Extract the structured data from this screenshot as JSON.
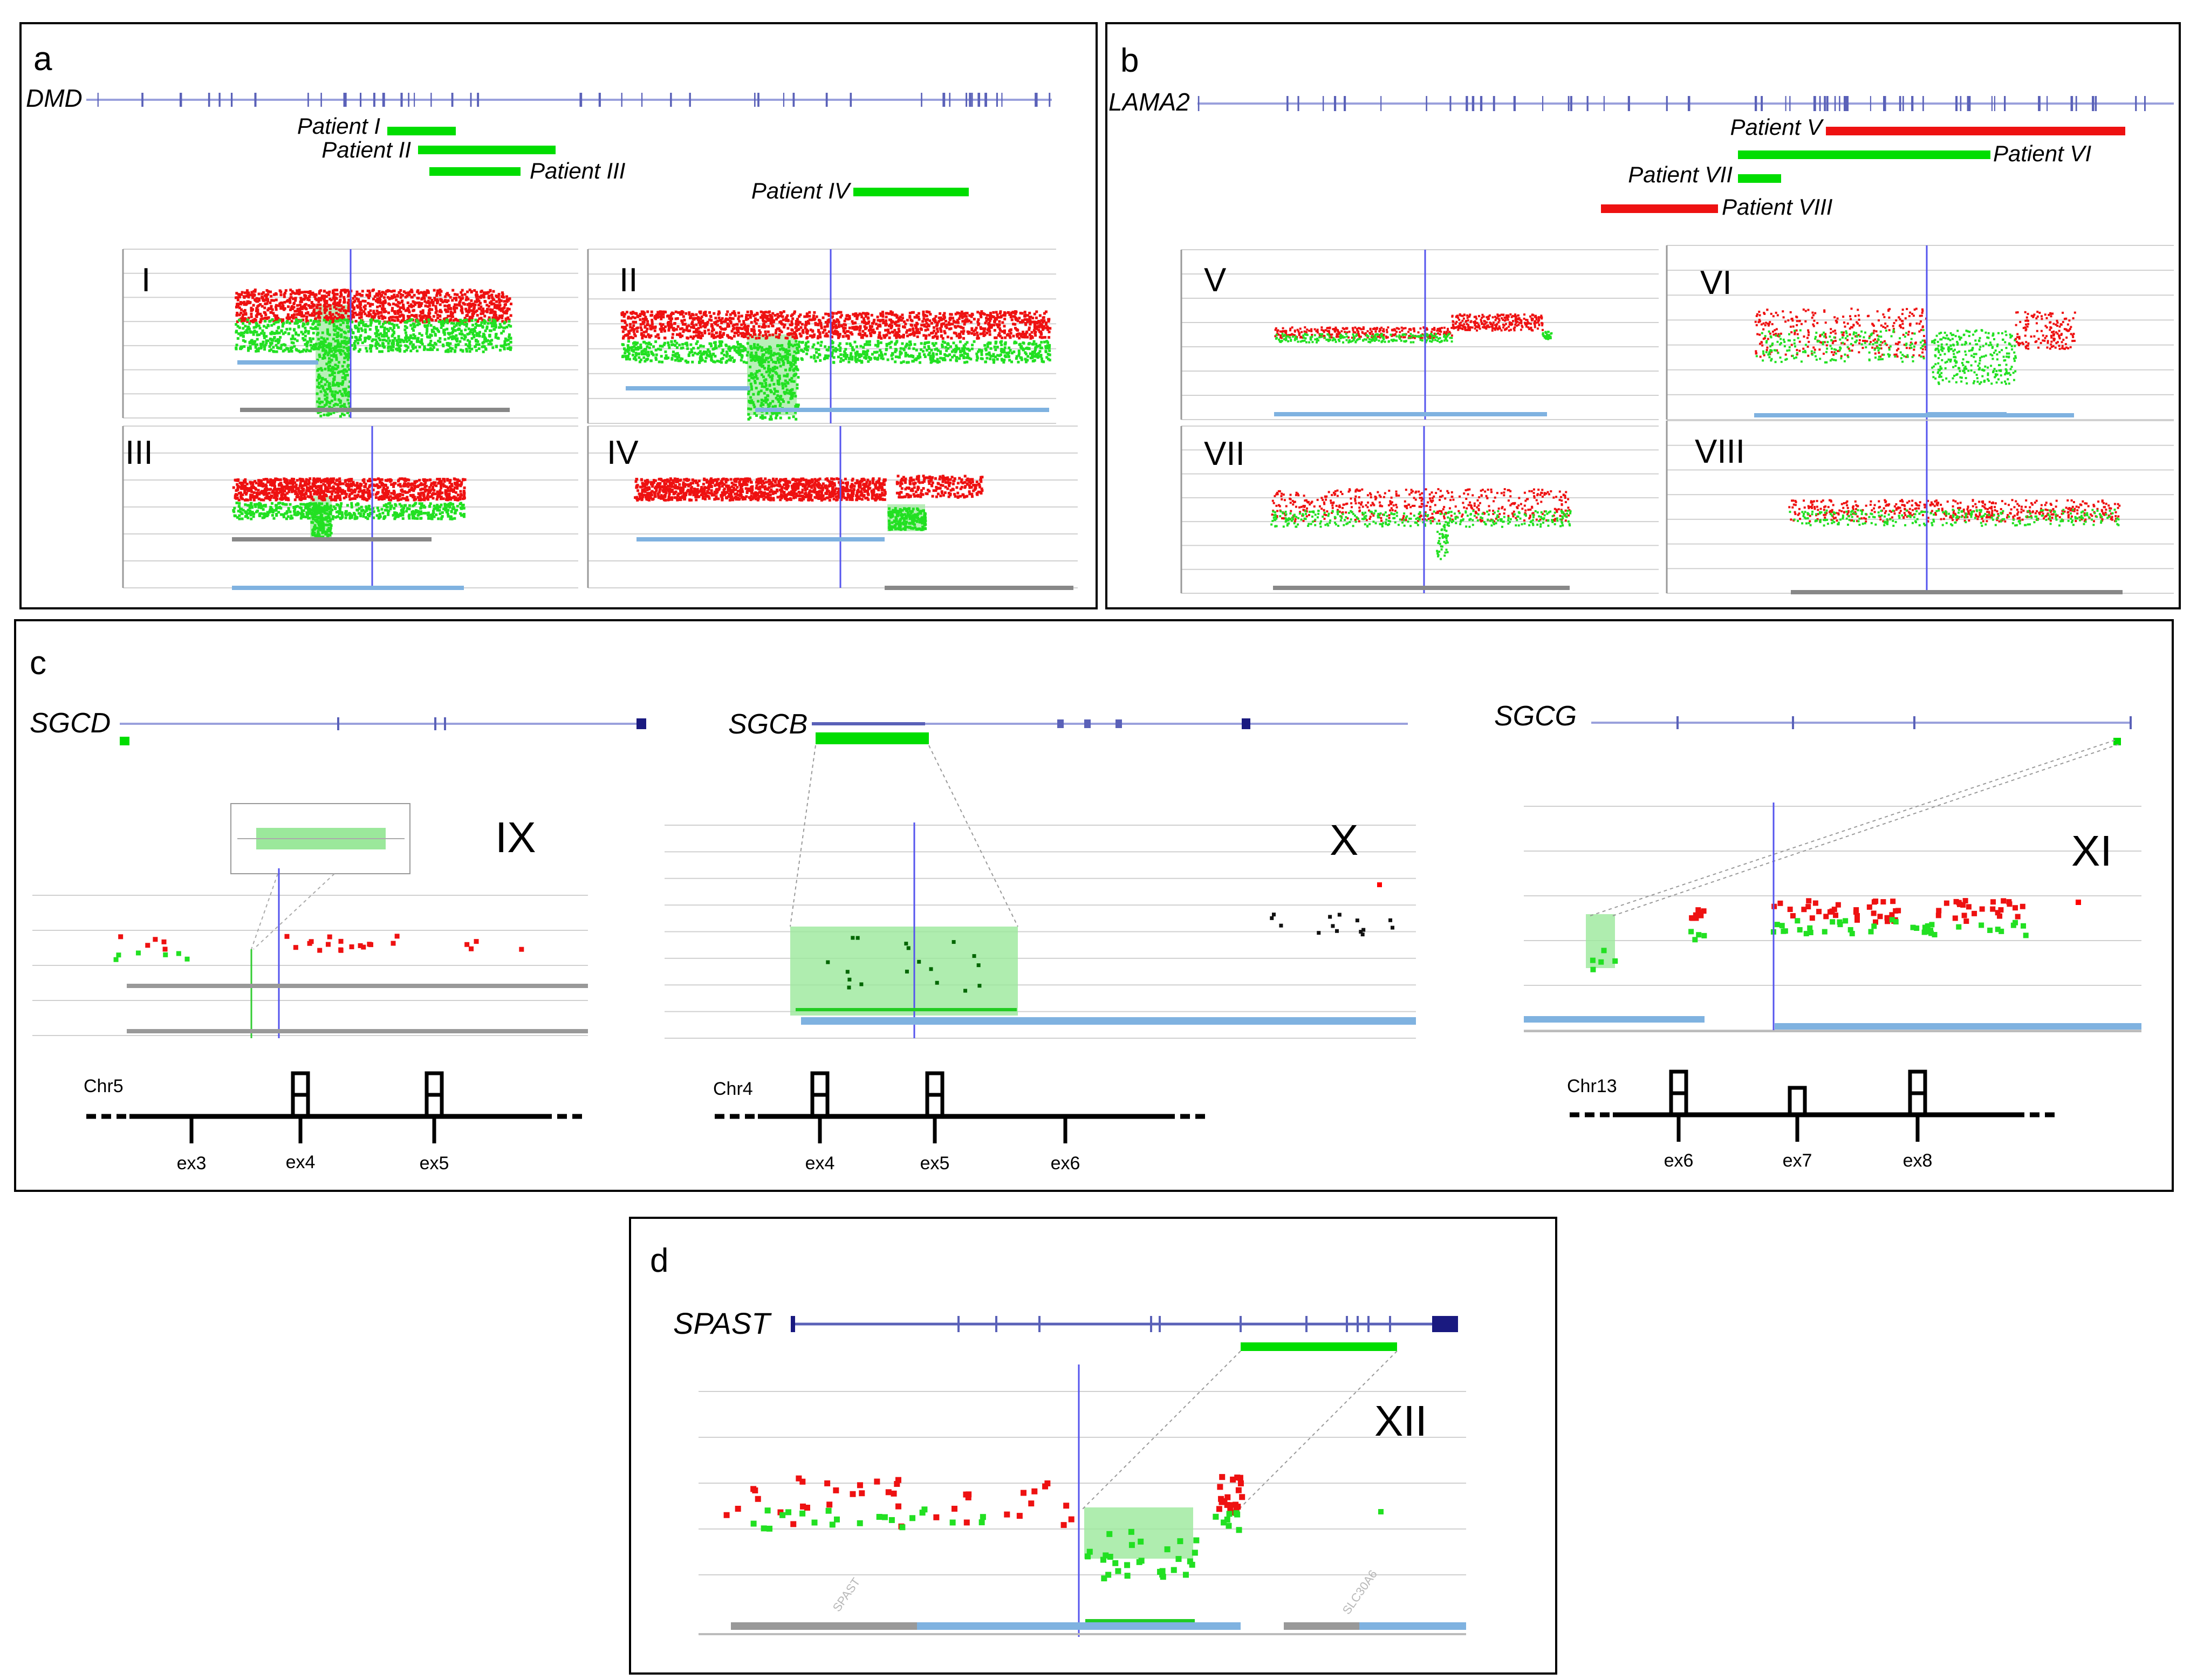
{
  "colors": {
    "red": "#ff0000",
    "green": "#00dd00",
    "darkgreen": "#009900",
    "navy": "#222a8c",
    "trackline": "#9aa0dc",
    "trackthick": "#5a61b8",
    "dbgreen": "#22e022",
    "dbred": "#ee1111",
    "blue": "#5555ee",
    "lightblue": "#7fb2e0",
    "gray": "#888888",
    "grid": "#d0d0d0",
    "shade": "#9be89b"
  },
  "panel_a": {
    "letter": "a",
    "gene": "DMD",
    "patients": [
      {
        "label": "Patient I",
        "color": "green"
      },
      {
        "label": "Patient II",
        "color": "green"
      },
      {
        "label": "Patient III",
        "color": "green"
      },
      {
        "label": "Patient IV",
        "color": "green"
      }
    ],
    "plots": [
      "I",
      "II",
      "III",
      "IV"
    ]
  },
  "panel_b": {
    "letter": "b",
    "gene": "LAMA2",
    "patients": [
      {
        "label": "Patient V",
        "color": "red"
      },
      {
        "label": "Patient VI",
        "color": "green"
      },
      {
        "label": "Patient VII",
        "color": "green"
      },
      {
        "label": "Patient VIII",
        "color": "red"
      }
    ],
    "plots": [
      "V",
      "VI",
      "VII",
      "VIII"
    ]
  },
  "panel_c": {
    "letter": "c",
    "genes": [
      {
        "name": "SGCD",
        "plot": "IX",
        "chrom": "Chr5",
        "exons": [
          "ex3",
          "ex4",
          "ex5"
        ]
      },
      {
        "name": "SGCB",
        "plot": "X",
        "chrom": "Chr4",
        "exons": [
          "ex4",
          "ex5",
          "ex6"
        ]
      },
      {
        "name": "SGCG",
        "plot": "XI",
        "chrom": "Chr13",
        "exons": [
          "ex6",
          "ex7",
          "ex8"
        ]
      }
    ]
  },
  "panel_d": {
    "letter": "d",
    "gene": "SPAST",
    "plot": "XII"
  },
  "track_labels": {
    "spast": "SPAST",
    "slc30a6": "SLC30A6"
  }
}
